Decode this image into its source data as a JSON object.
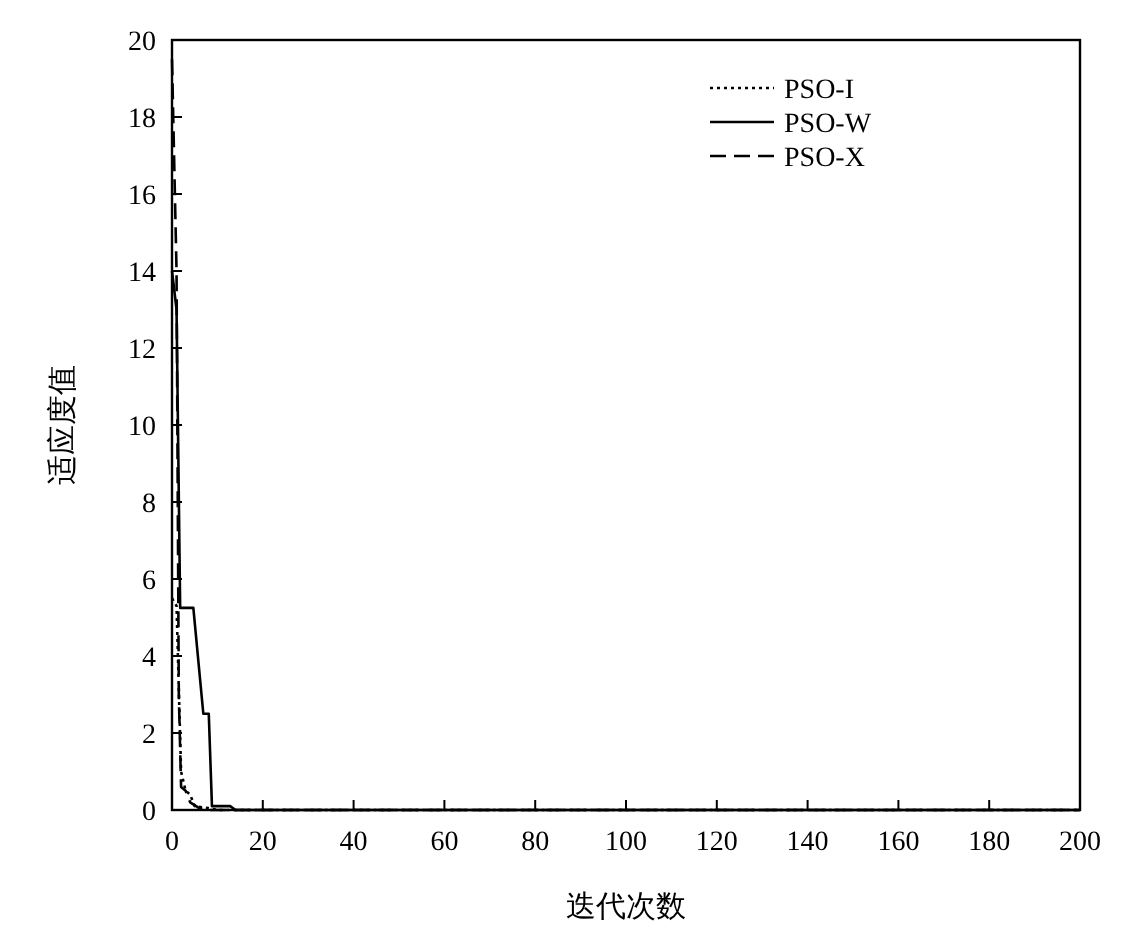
{
  "chart_data": {
    "type": "line",
    "xlabel": "迭代次数",
    "ylabel": "适应度值",
    "xlim": [
      0,
      200
    ],
    "ylim": [
      0,
      20
    ],
    "xticks": [
      0,
      20,
      40,
      60,
      80,
      100,
      120,
      140,
      160,
      180,
      200
    ],
    "yticks": [
      0,
      2,
      4,
      6,
      8,
      10,
      12,
      14,
      16,
      18,
      20
    ],
    "grid": false,
    "legend": "top right",
    "marker": "none",
    "series": [
      {
        "name": "PSO-I",
        "color": "#000000",
        "line_style": "dotted",
        "x": [
          0,
          1,
          2,
          3,
          4,
          5,
          8,
          10,
          200
        ],
        "values": [
          5.5,
          5.3,
          1,
          0.5,
          0.4,
          0.1,
          0.05,
          0,
          0
        ]
      },
      {
        "name": "PSO-W",
        "color": "#000000",
        "line_style": "solid",
        "x": [
          0,
          1,
          1.8,
          4.7,
          6.9,
          8.1,
          8.8,
          12.8,
          14,
          200
        ],
        "values": [
          14,
          13,
          5.25,
          5.25,
          2.5,
          2.5,
          0.1,
          0.1,
          0,
          0
        ]
      },
      {
        "name": "PSO-X",
        "color": "#000000",
        "line_style": "dashed",
        "x": [
          0,
          1,
          1.5,
          2,
          3,
          4,
          6,
          8,
          200
        ],
        "values": [
          19.5,
          14,
          3,
          0.6,
          0.5,
          0.2,
          0.05,
          0,
          0
        ]
      }
    ]
  }
}
